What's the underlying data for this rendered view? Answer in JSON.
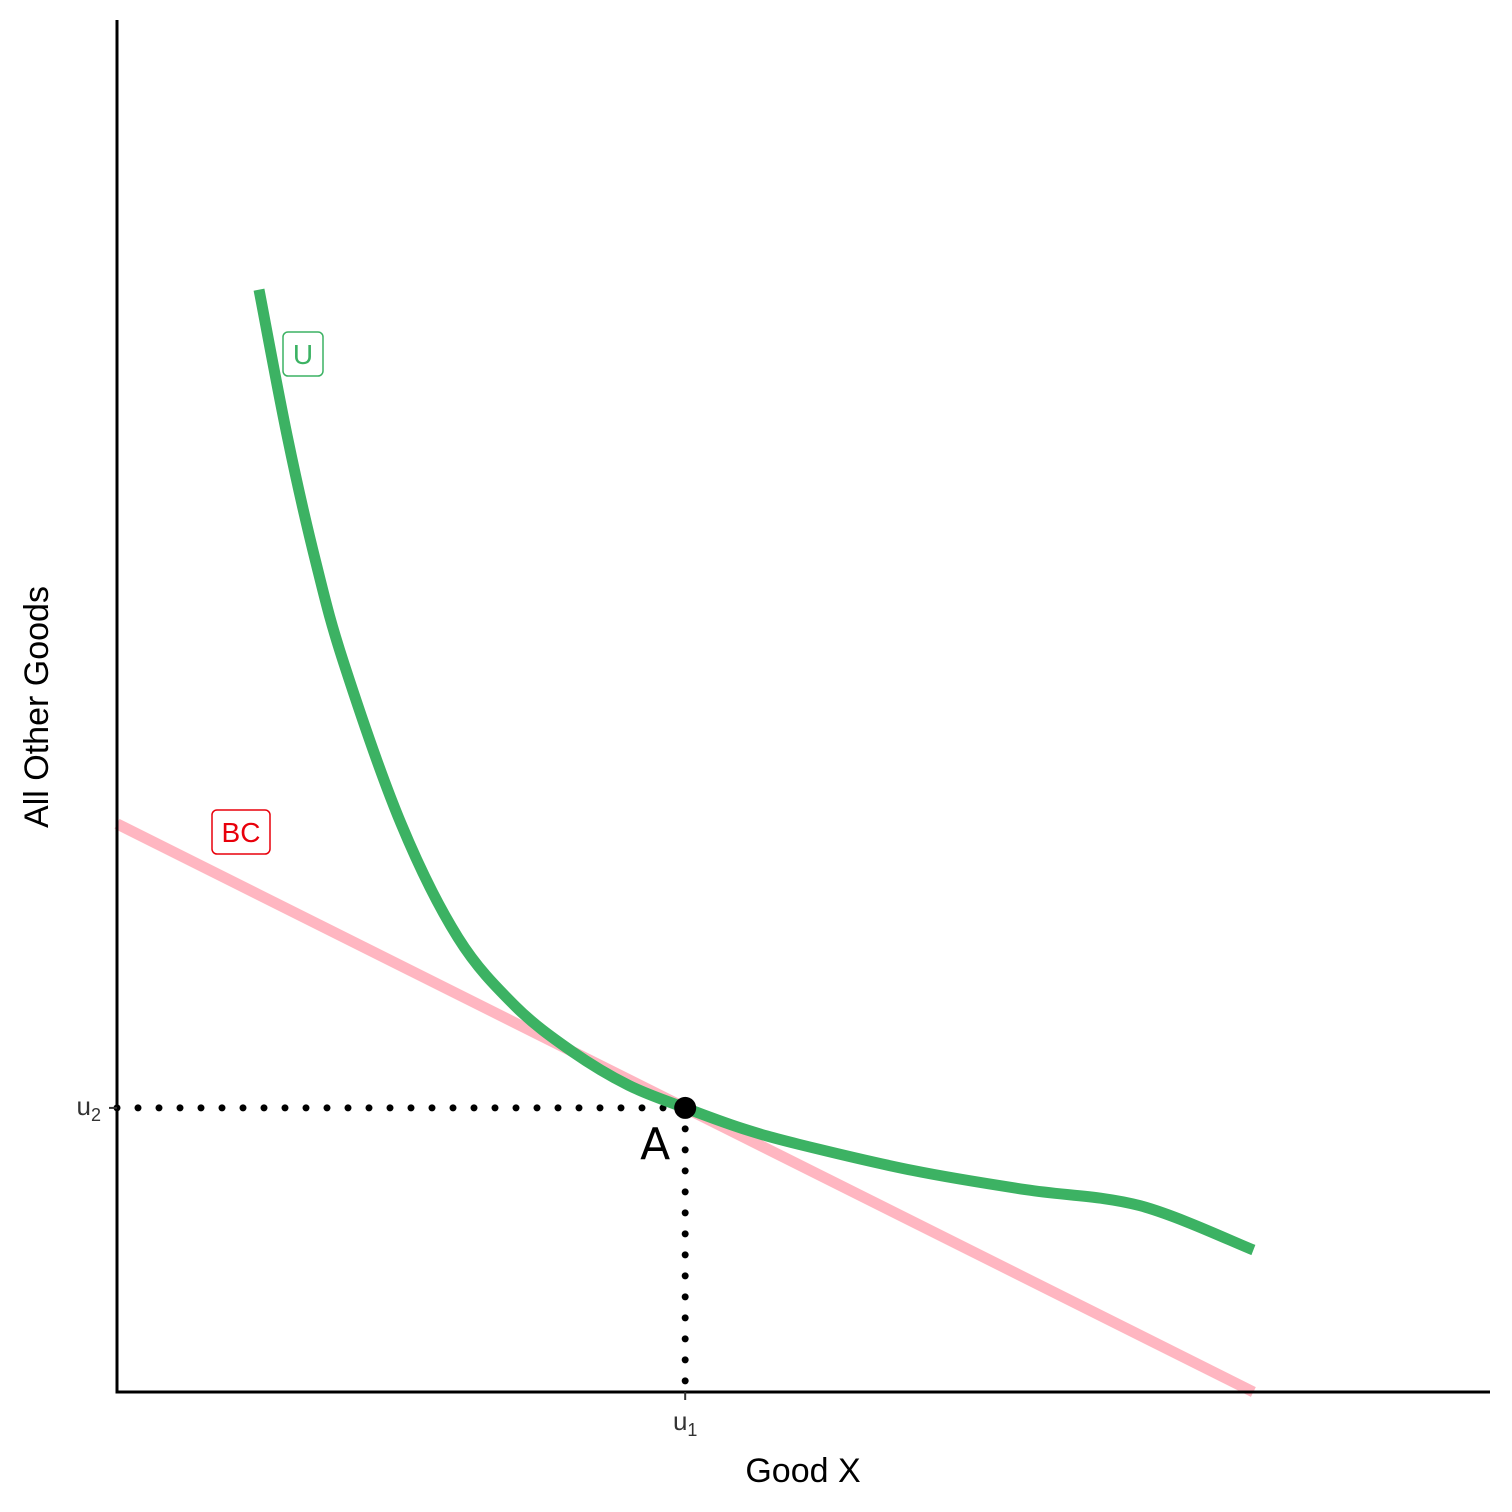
{
  "chart_data": {
    "type": "line",
    "xlabel": "Good X",
    "ylabel": "All Other Goods",
    "xlim": [
      0,
      11
    ],
    "ylim": [
      0,
      11
    ],
    "x_ticks": [
      {
        "value": 5,
        "label": "u",
        "sub": "1"
      }
    ],
    "y_ticks": [
      {
        "value": 2.5,
        "label": "u",
        "sub": "2"
      }
    ],
    "grid": false,
    "legend": "none",
    "series": [
      {
        "name": "U",
        "color": "#3cb263",
        "x": [
          1.25,
          1.5,
          1.75,
          2.0,
          2.5,
          3.0,
          3.5,
          4.0,
          4.5,
          5.0,
          5.5,
          6.0,
          7.0,
          8.0,
          9.0,
          10.0
        ],
        "y": [
          9.7,
          8.4,
          7.3,
          6.4,
          5.0,
          4.0,
          3.4,
          3.0,
          2.7,
          2.5,
          2.32,
          2.18,
          1.95,
          1.78,
          1.64,
          1.25
        ]
      },
      {
        "name": "BC",
        "color": "#ffb6c1",
        "x": [
          0,
          10
        ],
        "y": [
          5.0,
          0.0
        ]
      }
    ],
    "point": {
      "label": "A",
      "x": 5,
      "y": 2.5
    },
    "guides": {
      "x": 5,
      "y": 2.5,
      "style": "dotted"
    }
  }
}
